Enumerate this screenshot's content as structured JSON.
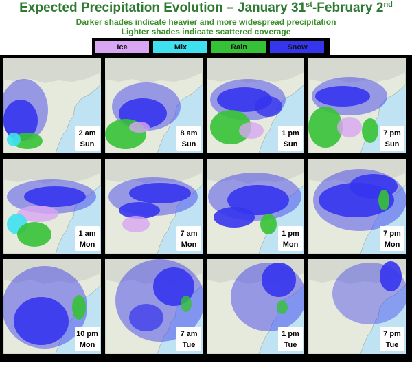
{
  "header": {
    "title_parts": [
      "Expected Precipitation Evolution – January 31",
      "st",
      "-February 2",
      "nd"
    ],
    "subtitle_lines": [
      "Darker shades indicate heavier and more widespread precipitation",
      "Lighter shades indicate scattered coverage"
    ]
  },
  "legend": {
    "items": [
      {
        "label": "Ice",
        "color": "#d8a6f2"
      },
      {
        "label": "Mix",
        "color": "#3fe0f0"
      },
      {
        "label": "Rain",
        "color": "#36c236"
      },
      {
        "label": "Snow",
        "color": "#3535ee"
      }
    ]
  },
  "panels": [
    {
      "time": "2 am",
      "day": "Sun"
    },
    {
      "time": "8 am",
      "day": "Sun"
    },
    {
      "time": "1 pm",
      "day": "Sun"
    },
    {
      "time": "7 pm",
      "day": "Sun"
    },
    {
      "time": "1 am",
      "day": "Mon"
    },
    {
      "time": "7 am",
      "day": "Mon"
    },
    {
      "time": "1 pm",
      "day": "Mon"
    },
    {
      "time": "7 pm",
      "day": "Mon"
    },
    {
      "time": "10 pm",
      "day": "Mon"
    },
    {
      "time": "7 am",
      "day": "Tue"
    },
    {
      "time": "1 pm",
      "day": "Tue"
    },
    {
      "time": "7 pm",
      "day": "Tue"
    }
  ]
}
